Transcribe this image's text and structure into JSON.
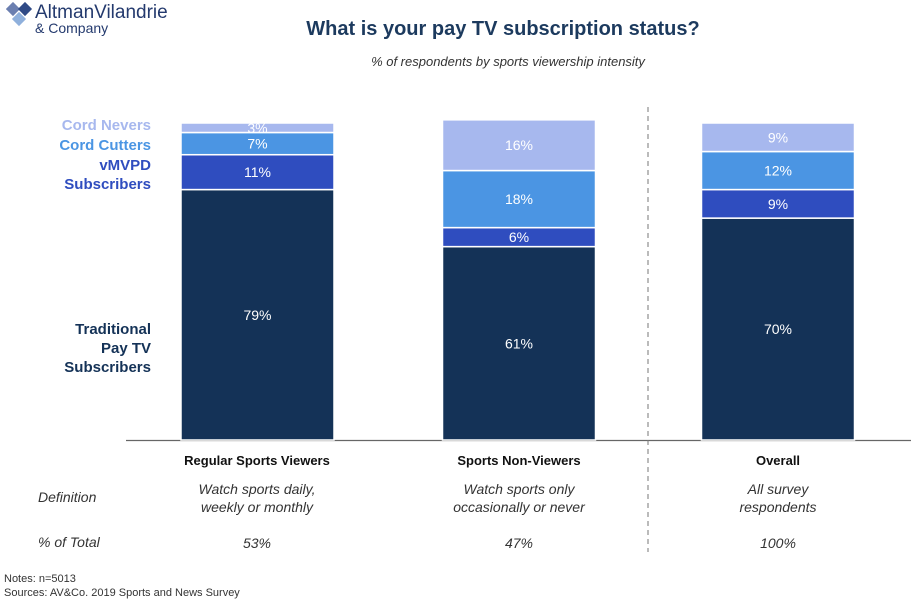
{
  "brand": {
    "line1": "AltmanVilandrie",
    "line2": "& Company"
  },
  "title": "What is your pay TV subscription status?",
  "subtitle": "% of respondents by sports viewership intensity",
  "colors": {
    "Traditional Pay TV Subscribers": "#143257",
    "vMVPD Subscribers": "#2f4dbf",
    "Cord Cutters": "#4b95e3",
    "Cord Nevers": "#a7b8ee"
  },
  "legend": {
    "cord_nevers": "Cord Nevers",
    "cord_cutters": "Cord Cutters",
    "vmvpd_line1": "vMVPD",
    "vmvpd_line2": "Subscribers",
    "trad_line1": "Traditional",
    "trad_line2": "Pay TV",
    "trad_line3": "Subscribers"
  },
  "chart_data": {
    "type": "bar",
    "stacked": true,
    "categories": [
      "Regular Sports Viewers",
      "Sports Non-Viewers",
      "Overall"
    ],
    "series": [
      {
        "name": "Traditional Pay TV Subscribers",
        "values": [
          79,
          61,
          70
        ],
        "labels": [
          "79%",
          "61%",
          "70%"
        ]
      },
      {
        "name": "vMVPD Subscribers",
        "values": [
          11,
          6,
          9
        ],
        "labels": [
          "11%",
          "6%",
          "9%"
        ]
      },
      {
        "name": "Cord Cutters",
        "values": [
          7,
          18,
          12
        ],
        "labels": [
          "7%",
          "18%",
          "12%"
        ]
      },
      {
        "name": "Cord Nevers",
        "values": [
          3,
          16,
          9
        ],
        "labels": [
          "3%",
          "16%",
          "9%"
        ]
      }
    ],
    "ylim": [
      0,
      100
    ]
  },
  "table": {
    "definition_label": "Definition",
    "total_label": "% of Total",
    "definitions": [
      [
        "Watch sports daily,",
        "weekly or monthly"
      ],
      [
        "Watch sports only",
        "occasionally or never"
      ],
      [
        "All survey",
        "respondents"
      ]
    ],
    "totals": [
      "53%",
      "47%",
      "100%"
    ]
  },
  "notes": {
    "line1": "Notes: n=5013",
    "line2": "Sources: AV&Co. 2019 Sports and News Survey"
  }
}
